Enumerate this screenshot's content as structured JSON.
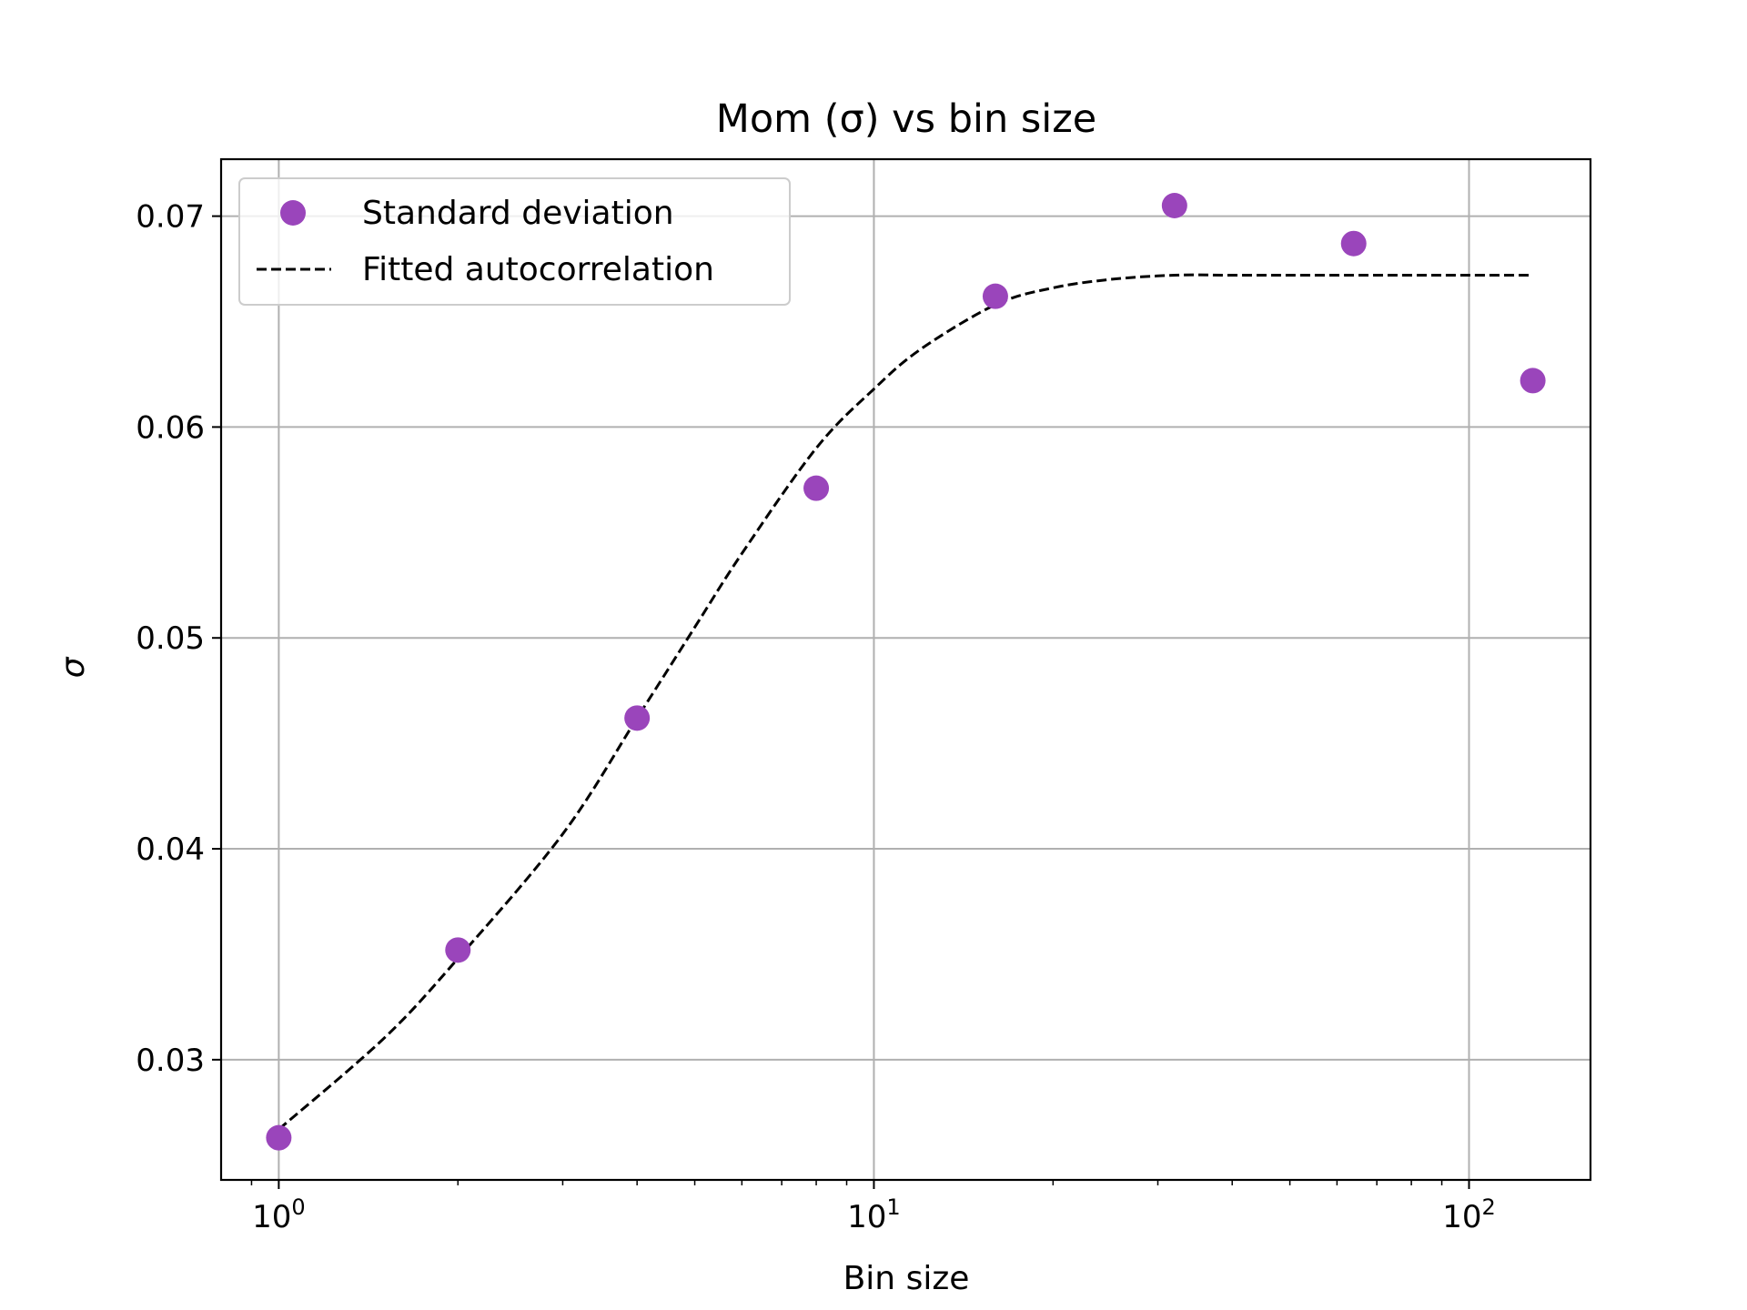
{
  "chart_data": {
    "type": "scatter",
    "title": "Mom (σ) vs bin size",
    "xlabel": "Bin size",
    "ylabel": "σ",
    "xscale": "log",
    "xlim": [
      0.8,
      160
    ],
    "ylim": [
      0.0243,
      0.0727
    ],
    "grid": true,
    "legend_position": "upper-left",
    "x_ticks": [
      {
        "value": 1,
        "base": "10",
        "exp": "0"
      },
      {
        "value": 10,
        "base": "10",
        "exp": "1"
      },
      {
        "value": 100,
        "base": "10",
        "exp": "2"
      }
    ],
    "y_ticks": [
      {
        "value": 0.03,
        "label": "0.03"
      },
      {
        "value": 0.04,
        "label": "0.04"
      },
      {
        "value": 0.05,
        "label": "0.05"
      },
      {
        "value": 0.06,
        "label": "0.06"
      },
      {
        "value": 0.07,
        "label": "0.07"
      }
    ],
    "series": [
      {
        "name": "Standard deviation",
        "kind": "scatter",
        "color": "#9a45bb",
        "x": [
          1,
          2,
          4,
          8,
          16,
          32,
          64,
          128
        ],
        "y": [
          0.0263,
          0.0352,
          0.0462,
          0.0571,
          0.0662,
          0.0705,
          0.0687,
          0.0622
        ]
      },
      {
        "name": "Fitted autocorrelation",
        "kind": "line",
        "style": "dashed",
        "color": "#000000",
        "x": [
          1,
          1.5,
          2,
          3,
          4,
          5,
          6,
          8,
          10,
          12,
          16,
          20,
          25,
          32,
          40,
          50,
          64,
          80,
          100,
          128
        ],
        "y": [
          0.0267,
          0.031,
          0.0348,
          0.0407,
          0.0462,
          0.0505,
          0.054,
          0.059,
          0.0618,
          0.0637,
          0.0658,
          0.0666,
          0.067,
          0.0672,
          0.0672,
          0.0672,
          0.0672,
          0.0672,
          0.0672,
          0.0672
        ]
      }
    ]
  },
  "colors": {
    "scatter": "#9a45bb",
    "line": "#000000",
    "grid": "#b0b0b0",
    "axes": "#000000"
  }
}
